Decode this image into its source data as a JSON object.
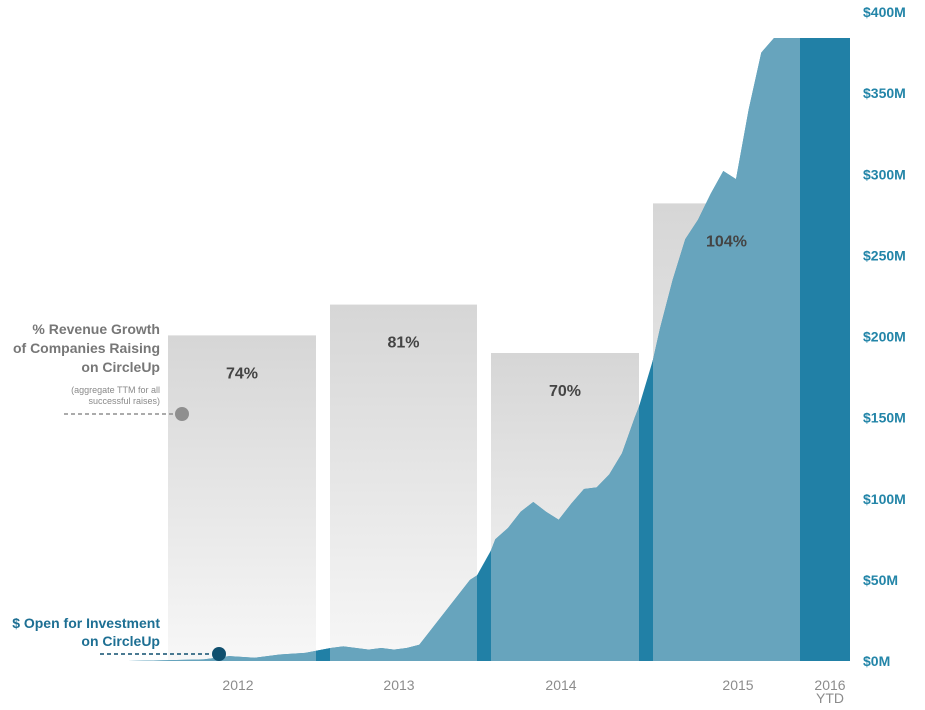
{
  "chart_data": {
    "type": "area",
    "title": "",
    "xlabel": "",
    "ylabel": "",
    "colors": {
      "area": "#6ea7bf",
      "area_dark": "#2180a6",
      "bar_top": "#d6d6d6",
      "bar_bottom": "#f7f7f7",
      "axis_text": "#2385a8",
      "growth_label": "#777777",
      "invest_label": "#1d6f93",
      "growth_marker": "#8f8f8f",
      "invest_marker": "#0f4f6e"
    },
    "x_ticks": [
      "2012",
      "2013",
      "2014",
      "2015",
      "2016"
    ],
    "x_tick_sub": "YTD",
    "y_ticks": [
      "$0M",
      "$50M",
      "$100M",
      "$150M",
      "$200M",
      "$250M",
      "$300M",
      "$350M",
      "$400M"
    ],
    "ylim": [
      0,
      400
    ],
    "series": [
      {
        "name": "$ Open for Investment on CircleUp",
        "unit": "$M",
        "x": [
          "2011-07",
          "2011-10",
          "2012-01",
          "2012-03",
          "2012-05",
          "2012-07",
          "2012-09",
          "2012-11",
          "2012-12",
          "2013-01",
          "2013-02",
          "2013-03",
          "2013-04",
          "2013-05",
          "2013-06",
          "2013-07",
          "2013-08",
          "2013-09",
          "2013-10",
          "2013-11",
          "2013-12",
          "2014-01",
          "2014-02",
          "2014-03",
          "2014-04",
          "2014-05",
          "2014-06",
          "2014-07",
          "2014-08",
          "2014-09",
          "2014-10",
          "2014-11",
          "2014-12",
          "2015-01",
          "2015-02",
          "2015-03",
          "2015-04",
          "2015-05",
          "2015-06",
          "2015-07",
          "2015-08",
          "2015-09",
          "2015-10",
          "2015-11",
          "2015-12",
          "2016-01",
          "2016-02",
          "2016-03",
          "2016-04"
        ],
        "values": [
          0,
          0.5,
          1,
          3,
          2,
          4,
          5,
          8,
          9,
          8,
          7,
          8,
          7,
          8,
          10,
          20,
          30,
          40,
          50,
          55,
          75,
          82,
          92,
          98,
          92,
          87,
          97,
          106,
          107,
          115,
          128,
          150,
          170,
          205,
          235,
          260,
          272,
          288,
          302,
          297,
          340,
          375,
          384,
          384,
          384,
          384,
          384,
          384,
          384
        ]
      }
    ],
    "growth_bars": {
      "name": "% Revenue Growth of Companies Raising on CircleUp",
      "note": "(aggregate TTM for all successful raises)",
      "categories": [
        "2012",
        "2013",
        "2014",
        "2015"
      ],
      "values": [
        74,
        81,
        70,
        104
      ],
      "labels": [
        "74%",
        "81%",
        "70%",
        "104%"
      ]
    },
    "growth_label_lines": [
      "% Revenue Growth",
      "of Companies Raising",
      "on CircleUp"
    ],
    "growth_note_lines": [
      "(aggregate TTM for all",
      "successful raises)"
    ],
    "invest_label_lines": [
      "$ Open for Investment",
      "on CircleUp"
    ],
    "year_dividers": [
      "2012-12",
      "2013-12",
      "2014-12",
      "2015-12"
    ]
  }
}
